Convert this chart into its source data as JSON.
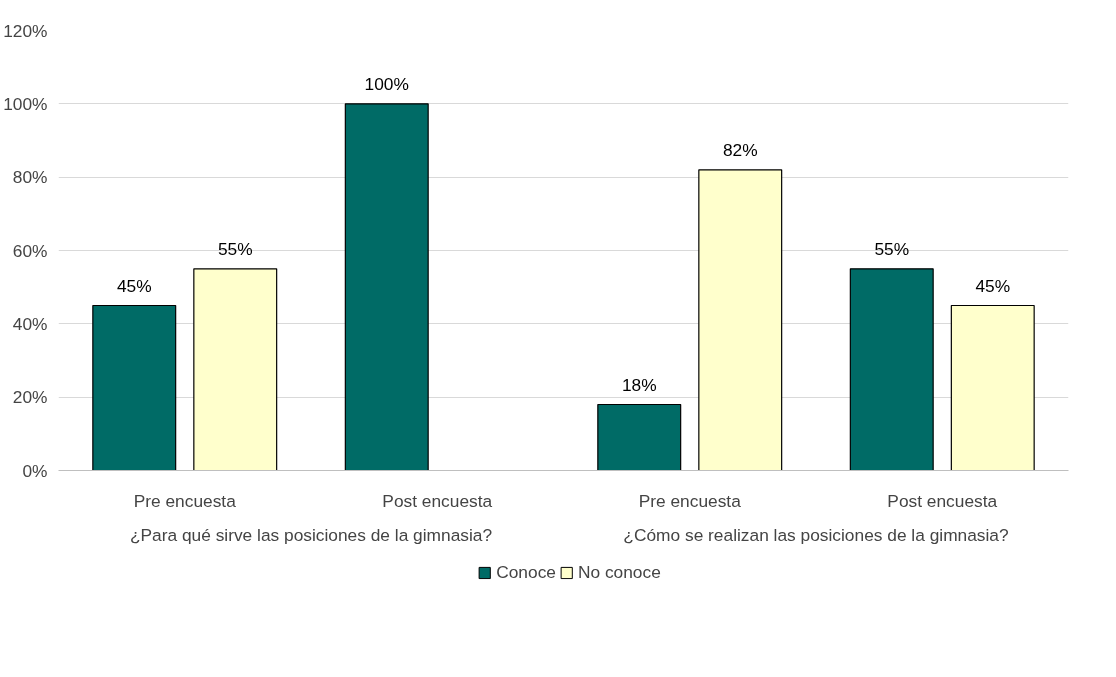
{
  "chart_data": {
    "type": "bar",
    "categories": [
      "Pre encuesta",
      "Post encuesta",
      "Pre encuesta",
      "Post encuesta"
    ],
    "series": [
      {
        "name": "Conoce",
        "color": "#006b66",
        "values": [
          45,
          100,
          18,
          55
        ],
        "value_labels": [
          "45%",
          "100%",
          "18%",
          "55%"
        ]
      },
      {
        "name": "No conoce",
        "color": "#ffffcc",
        "values": [
          55,
          null,
          82,
          45
        ],
        "value_labels": [
          "55%",
          null,
          "82%",
          "45%"
        ]
      }
    ],
    "annotations": [
      "¿Para qué sirve las posiciones de la gimnasia?",
      "¿Cómo se realizan las posiciones de la gimnasia?"
    ],
    "ylim": [
      0,
      120
    ],
    "yticks": [
      {
        "value": 0,
        "label": "0%"
      },
      {
        "value": 20,
        "label": "20%"
      },
      {
        "value": 40,
        "label": "40%"
      },
      {
        "value": 60,
        "label": "60%"
      },
      {
        "value": 80,
        "label": "80%"
      },
      {
        "value": 100,
        "label": "100%"
      },
      {
        "value": 120,
        "label": "120%"
      }
    ],
    "grid": "y",
    "legend": "bottom"
  }
}
